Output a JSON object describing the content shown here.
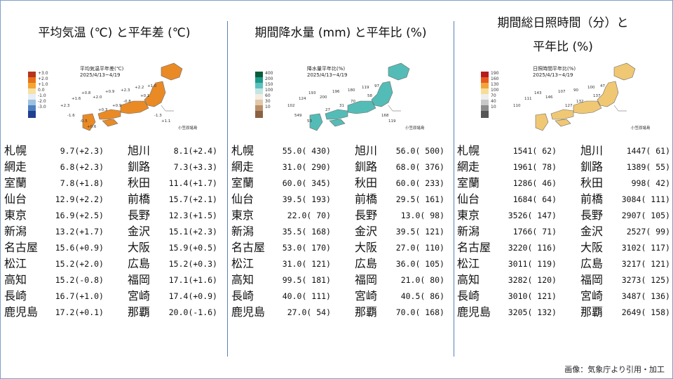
{
  "panels": [
    {
      "title_lines": [
        "平均気温 (℃) と平年差 (℃)"
      ],
      "map_title_lines": [
        "平均気温平年差(℃)",
        "2025/4/13~4/19"
      ],
      "legend": [
        {
          "label": "+3.0",
          "color": "#b5351e"
        },
        {
          "label": "+2.0",
          "color": "#e8701a"
        },
        {
          "label": "+1.0",
          "color": "#f4a532"
        },
        {
          "label": "0.0",
          "color": "#f6e1a6"
        },
        {
          "label": "-1.0",
          "color": "#e6eef6"
        },
        {
          "label": "-2.0",
          "color": "#9ec1e0"
        },
        {
          "label": "-3.0",
          "color": "#4f7fbf"
        },
        {
          "label": "",
          "color": "#1f3f8f"
        }
      ],
      "map_color": "#ea8a25",
      "map_labels": [
        "+2.3",
        "+1.6",
        "+0.8",
        "+2.0",
        "+0.9",
        "+2.3",
        "+2.2",
        "+1.0",
        "+0.1",
        "-0.8",
        "+0.9",
        "+0.3",
        "-1.3",
        "+1.1",
        "-1.6",
        "-0.5",
        "+0.6"
      ],
      "islands_label": "小笠原諸島",
      "rows": [
        {
          "a_name": "札幌",
          "a_val": "9.7(+2.3)",
          "b_name": "旭川",
          "b_val": "8.1(+2.4)"
        },
        {
          "a_name": "網走",
          "a_val": "6.8(+2.3)",
          "b_name": "釧路",
          "b_val": "7.3(+3.3)"
        },
        {
          "a_name": "室蘭",
          "a_val": "7.8(+1.8)",
          "b_name": "秋田",
          "b_val": "11.4(+1.7)"
        },
        {
          "a_name": "仙台",
          "a_val": "12.9(+2.2)",
          "b_name": "前橋",
          "b_val": "15.7(+2.1)"
        },
        {
          "a_name": "東京",
          "a_val": "16.9(+2.5)",
          "b_name": "長野",
          "b_val": "12.3(+1.5)"
        },
        {
          "a_name": "新潟",
          "a_val": "13.2(+1.7)",
          "b_name": "金沢",
          "b_val": "15.1(+2.3)"
        },
        {
          "a_name": "名古屋",
          "a_val": "15.6(+0.9)",
          "b_name": "大阪",
          "b_val": "15.9(+0.5)"
        },
        {
          "a_name": "松江",
          "a_val": "15.2(+2.0)",
          "b_name": "広島",
          "b_val": "15.2(+0.3)"
        },
        {
          "a_name": "高知",
          "a_val": "15.2(-0.8)",
          "b_name": "福岡",
          "b_val": "17.1(+1.6)"
        },
        {
          "a_name": "長崎",
          "a_val": "16.7(+1.0)",
          "b_name": "宮崎",
          "b_val": "17.4(+0.9)"
        },
        {
          "a_name": "鹿児島",
          "a_val": "17.2(+0.1)",
          "b_name": "那覇",
          "b_val": "20.0(-1.6)"
        }
      ]
    },
    {
      "title_lines": [
        "期間降水量 (mm) と平年比 (%)"
      ],
      "map_title_lines": [
        "降水量平年比(%)",
        "2025/4/13~4/19"
      ],
      "legend": [
        {
          "label": "400",
          "color": "#0b5b3a"
        },
        {
          "label": "200",
          "color": "#1d9a8a"
        },
        {
          "label": "150",
          "color": "#5cc2bf"
        },
        {
          "label": "100",
          "color": "#c2e6e3"
        },
        {
          "label": "60",
          "color": "#f4ede0"
        },
        {
          "label": "30",
          "color": "#e2c7a8"
        },
        {
          "label": "10",
          "color": "#b98f6a"
        },
        {
          "label": "",
          "color": "#8a6242"
        }
      ],
      "map_color": "#54bcb6",
      "map_labels": [
        "102",
        "124",
        "193",
        "200",
        "196",
        "180",
        "119",
        "97",
        "58",
        "70",
        "31",
        "27",
        "168",
        "119",
        "549",
        "53"
      ],
      "islands_label": "小笠原諸島",
      "rows": [
        {
          "a_name": "札幌",
          "a_val": "55.0( 430)",
          "b_name": "旭川",
          "b_val": "56.0( 500)"
        },
        {
          "a_name": "網走",
          "a_val": "31.0( 290)",
          "b_name": "釧路",
          "b_val": "68.0( 376)"
        },
        {
          "a_name": "室蘭",
          "a_val": "60.0( 345)",
          "b_name": "秋田",
          "b_val": "60.0( 233)"
        },
        {
          "a_name": "仙台",
          "a_val": "39.5( 193)",
          "b_name": "前橋",
          "b_val": "29.5( 161)"
        },
        {
          "a_name": "東京",
          "a_val": "22.0(  70)",
          "b_name": "長野",
          "b_val": "13.0(  98)"
        },
        {
          "a_name": "新潟",
          "a_val": "35.5( 168)",
          "b_name": "金沢",
          "b_val": "39.5( 121)"
        },
        {
          "a_name": "名古屋",
          "a_val": "53.0( 170)",
          "b_name": "大阪",
          "b_val": "27.0( 110)"
        },
        {
          "a_name": "松江",
          "a_val": "31.0( 121)",
          "b_name": "広島",
          "b_val": "36.0( 105)"
        },
        {
          "a_name": "高知",
          "a_val": "99.5( 181)",
          "b_name": "福岡",
          "b_val": "21.0(  80)"
        },
        {
          "a_name": "長崎",
          "a_val": "40.0( 111)",
          "b_name": "宮崎",
          "b_val": "40.5(  86)"
        },
        {
          "a_name": "鹿児島",
          "a_val": "27.0(  54)",
          "b_name": "那覇",
          "b_val": "70.0( 168)"
        }
      ]
    },
    {
      "title_lines": [
        "期間総日照時間（分）と",
        "平年比 (%)"
      ],
      "map_title_lines": [
        "日照時間平年比(%)",
        "2025/4/13~4/19"
      ],
      "legend": [
        {
          "label": "190",
          "color": "#b71c1c"
        },
        {
          "label": "160",
          "color": "#e65a1e"
        },
        {
          "label": "130",
          "color": "#f2a43a"
        },
        {
          "label": "100",
          "color": "#f6dd98"
        },
        {
          "label": "70",
          "color": "#eeeeee"
        },
        {
          "label": "40",
          "color": "#c8c8c8"
        },
        {
          "label": "10",
          "color": "#8c8c8c"
        },
        {
          "label": "",
          "color": "#555555"
        }
      ],
      "map_color": "#f0c874",
      "map_labels": [
        "110",
        "111",
        "143",
        "146",
        "107",
        "90",
        "100",
        "47",
        "137",
        "132",
        "127"
      ],
      "islands_label": "小笠原諸島",
      "rows": [
        {
          "a_name": "札幌",
          "a_val": "1541(  62)",
          "b_name": "旭川",
          "b_val": "1447(  61)"
        },
        {
          "a_name": "網走",
          "a_val": "1961(  78)",
          "b_name": "釧路",
          "b_val": "1389(  55)"
        },
        {
          "a_name": "室蘭",
          "a_val": "1286(  46)",
          "b_name": "秋田",
          "b_val": "998(  42)"
        },
        {
          "a_name": "仙台",
          "a_val": "1684(  64)",
          "b_name": "前橋",
          "b_val": "3084( 111)"
        },
        {
          "a_name": "東京",
          "a_val": "3526( 147)",
          "b_name": "長野",
          "b_val": "2907( 105)"
        },
        {
          "a_name": "新潟",
          "a_val": "1766(  71)",
          "b_name": "金沢",
          "b_val": "2527(  99)"
        },
        {
          "a_name": "名古屋",
          "a_val": "3220( 116)",
          "b_name": "大阪",
          "b_val": "3102( 117)"
        },
        {
          "a_name": "松江",
          "a_val": "3011( 119)",
          "b_name": "広島",
          "b_val": "3217( 121)"
        },
        {
          "a_name": "高知",
          "a_val": "3282( 120)",
          "b_name": "福岡",
          "b_val": "3273( 125)"
        },
        {
          "a_name": "長崎",
          "a_val": "3010( 121)",
          "b_name": "宮崎",
          "b_val": "3487( 136)"
        },
        {
          "a_name": "鹿児島",
          "a_val": "3205( 132)",
          "b_name": "那覇",
          "b_val": "2649( 158)"
        }
      ]
    }
  ],
  "credit": "画像：気象庁より引用・加工"
}
